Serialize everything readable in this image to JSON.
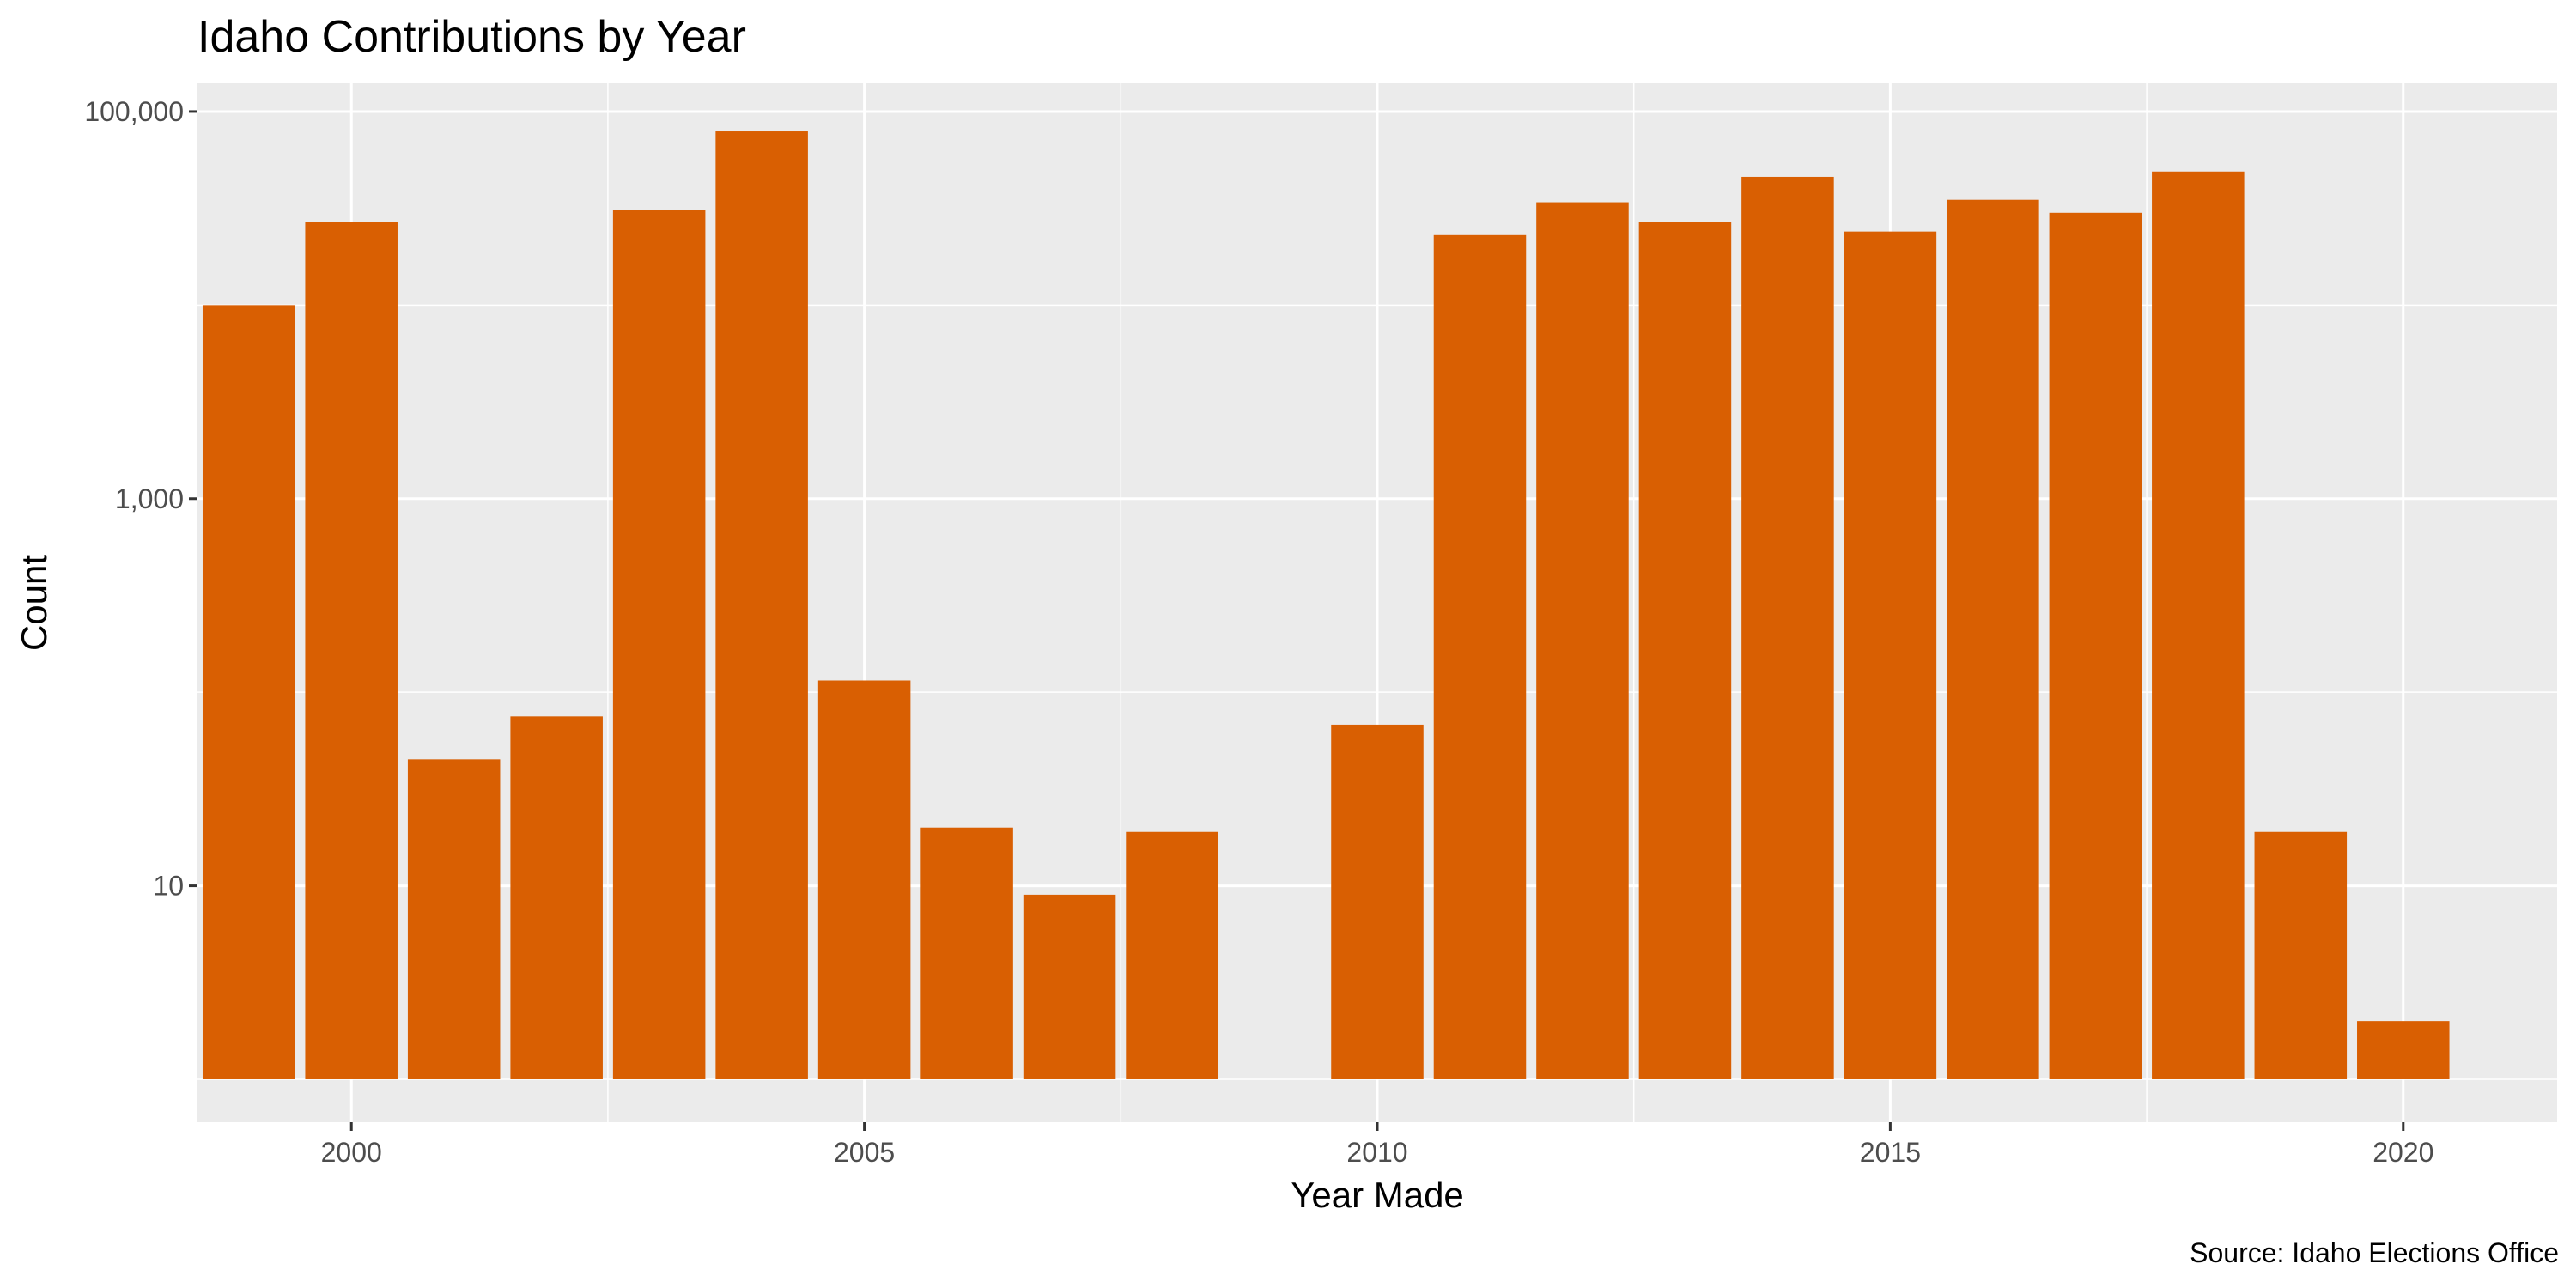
{
  "chart_data": {
    "type": "bar",
    "title": "Idaho Contributions by Year",
    "xlabel": "Year Made",
    "ylabel": "Count",
    "caption": "Source: Idaho Elections Office",
    "y_scale": "log10",
    "xlim": [
      1998.5,
      2021.5
    ],
    "ylim": [
      0.6,
      140000
    ],
    "x_ticks": [
      2000,
      2005,
      2010,
      2015,
      2020
    ],
    "x_tick_labels": [
      "2000",
      "2005",
      "2010",
      "2015",
      "2020"
    ],
    "y_ticks": [
      10,
      1000,
      100000
    ],
    "y_tick_labels": [
      "10",
      "1,000",
      "100,000"
    ],
    "bar_baseline": 1,
    "grid": true,
    "colors": {
      "bar": "#d95f02",
      "panel": "#ebebeb",
      "grid": "#ffffff"
    },
    "x": [
      1999,
      2000,
      2001,
      2002,
      2003,
      2004,
      2005,
      2006,
      2007,
      2008,
      2010,
      2011,
      2012,
      2013,
      2014,
      2015,
      2016,
      2017,
      2018,
      2019,
      2020
    ],
    "values": [
      10000,
      27000,
      45,
      75,
      31000,
      79000,
      115,
      20,
      9,
      19,
      68,
      23000,
      34000,
      27000,
      46000,
      24000,
      35000,
      30000,
      49000,
      19,
      2
    ]
  }
}
